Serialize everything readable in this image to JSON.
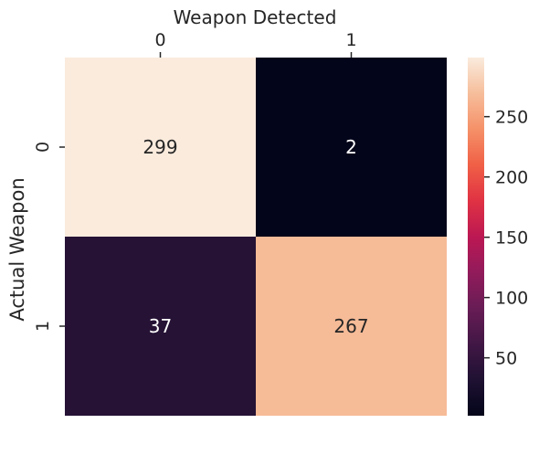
{
  "chart_data": {
    "type": "heatmap",
    "xlabel": "Weapon Detected",
    "ylabel": "Actual Weapon",
    "x_categories": [
      "0",
      "1"
    ],
    "y_categories": [
      "0",
      "1"
    ],
    "x_axis_position": "top",
    "values": [
      [
        299,
        2
      ],
      [
        37,
        267
      ]
    ],
    "value_range": [
      2,
      299
    ],
    "colorbar": {
      "ticks": [
        50,
        100,
        150,
        200,
        250
      ],
      "colormap": "rocket",
      "placement": "right"
    },
    "grid": false
  },
  "colors": {
    "text_dark": "#262626",
    "text_on_dark": "#ffffff",
    "text_on_light": "#262626"
  }
}
